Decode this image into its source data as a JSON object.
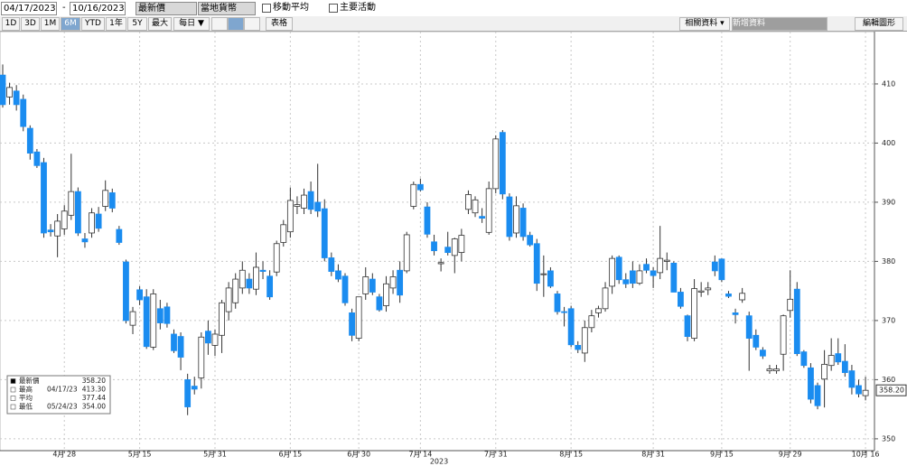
{
  "toolbar": {
    "start_date": "04/17/2023",
    "end_date": "10/16/2023",
    "field": "最新價",
    "currency": "當地貨幣",
    "moving_average": "移動平均",
    "events": "主要活動",
    "ranges": [
      "1D",
      "3D",
      "1M",
      "6M",
      "YTD",
      "1年",
      "5Y",
      "最大"
    ],
    "frequency": "每日 ▼",
    "table": "表格",
    "related": "相關資料 ▾",
    "add_data": "新增資料",
    "edit": "編輯圖形"
  },
  "chart_data": {
    "type": "candlestick",
    "year_label": "2023",
    "categories": [
      null,
      null,
      null,
      null,
      null,
      null,
      null,
      null,
      null,
      "4月 28",
      null,
      null,
      null,
      null,
      null,
      null,
      null,
      null,
      null,
      null,
      "5月 15",
      null,
      null,
      null,
      null,
      null,
      null,
      null,
      null,
      null,
      null,
      "5月 31",
      null,
      null,
      null,
      null,
      null,
      null,
      null,
      null,
      null,
      null,
      "6月 15",
      null,
      null,
      null,
      null,
      null,
      null,
      null,
      null,
      null,
      "6月 30",
      null,
      null,
      null,
      null,
      null,
      null,
      null,
      null,
      "7月 14",
      null,
      null,
      null,
      null,
      null,
      null,
      null,
      null,
      null,
      null,
      "7月 31",
      null,
      null,
      null,
      null,
      null,
      null,
      null,
      null,
      null,
      null,
      "8月 15",
      null,
      null,
      null,
      null,
      null,
      null,
      null,
      null,
      null,
      null,
      null,
      "8月 31",
      null,
      null,
      null,
      null,
      null,
      null,
      null,
      null,
      null,
      "9月 15",
      null,
      null,
      null,
      null,
      null,
      null,
      null,
      null,
      null,
      "9月 29",
      null,
      null,
      null,
      null,
      null,
      null,
      null,
      null,
      null,
      null,
      "10月 16"
    ],
    "open": [
      411.5,
      407.8,
      408.8,
      407.4,
      402.5,
      398.5,
      396.7,
      385.3,
      384.3,
      385.5,
      387.8,
      391.8,
      383.8,
      384.8,
      388.0,
      389.3,
      391.6,
      385.4,
      379.9,
      369.2,
      375.2,
      374.0,
      365.5,
      372.0,
      372.3,
      367.7,
      367.3,
      360.0,
      358.9,
      360.3,
      368.2,
      365.8,
      367.5,
      371.5,
      373.0,
      375.5,
      377.0,
      375.3,
      378.5,
      377.5,
      378.2,
      383.2,
      385.0,
      389.3,
      389.0,
      391.8,
      390.0,
      388.9,
      380.6,
      378.4,
      377.5,
      371.3,
      367.0,
      374.5,
      377.0,
      374.0,
      372.5,
      375.5,
      378.5,
      378.4,
      389.3,
      393.0,
      389.2,
      383.3,
      379.6,
      382.4,
      381.0,
      381.5,
      388.8,
      388.2,
      387.6,
      384.9,
      392.3,
      401.8,
      390.9,
      384.8,
      389.0,
      384.4,
      383.0,
      377.8,
      378.4,
      374.5,
      371.5,
      372.0,
      365.8,
      364.5,
      368.8,
      371.3,
      372.0,
      375.8,
      380.7,
      376.9,
      378.4,
      376.3,
      379.5,
      378.4,
      378.1,
      380.0,
      379.7,
      374.8,
      370.8,
      367.0,
      374.8,
      375.2,
      379.9,
      380.4,
      374.5,
      371.3,
      373.5,
      370.8,
      367.5,
      365.0,
      361.5,
      361.5,
      364.3,
      371.7,
      375.3,
      364.7,
      362.0,
      359.0,
      360.1,
      362.4,
      364.4,
      363.1,
      361.5,
      359.0,
      357.3
    ],
    "high": [
      413.3,
      410.2,
      409.8,
      408.2,
      403.0,
      399.0,
      397.5,
      386.3,
      388.0,
      389.5,
      398.2,
      392.5,
      384.8,
      389.0,
      389.2,
      393.7,
      392.3,
      386.0,
      380.3,
      372.3,
      375.8,
      375.3,
      375.3,
      373.5,
      373.0,
      368.5,
      368.0,
      361.0,
      360.5,
      368.0,
      370.0,
      368.5,
      373.5,
      376.5,
      378.0,
      380.0,
      378.0,
      381.5,
      380.0,
      378.5,
      383.5,
      387.0,
      392.5,
      391.0,
      392.3,
      393.5,
      396.5,
      390.5,
      381.5,
      379.5,
      378.0,
      372.0,
      374.0,
      379.0,
      378.0,
      374.5,
      377.5,
      378.5,
      380.0,
      385.0,
      393.5,
      394.0,
      390.0,
      384.5,
      380.5,
      385.0,
      384.0,
      385.5,
      392.0,
      391.0,
      389.0,
      393.5,
      401.3,
      402.2,
      391.5,
      391.0,
      389.8,
      385.0,
      383.8,
      381.0,
      379.0,
      375.0,
      372.3,
      372.5,
      366.5,
      370.0,
      371.8,
      372.5,
      376.5,
      381.0,
      381.0,
      378.0,
      380.0,
      379.5,
      380.5,
      379.0,
      386.0,
      381.5,
      380.0,
      375.5,
      371.0,
      377.0,
      376.5,
      376.5,
      381.0,
      380.5,
      375.0,
      372.0,
      375.5,
      371.5,
      368.5,
      365.5,
      362.5,
      362.5,
      371.0,
      378.5,
      376.5,
      365.0,
      362.8,
      359.5,
      365.0,
      367.0,
      367.0,
      366.0,
      362.5,
      360.0,
      360.5
    ],
    "low": [
      406.0,
      406.5,
      405.5,
      402.0,
      397.2,
      395.8,
      384.0,
      384.2,
      380.7,
      384.5,
      387.0,
      384.3,
      382.3,
      384.0,
      385.0,
      388.5,
      388.3,
      382.8,
      369.5,
      367.7,
      372.6,
      365.2,
      365.0,
      368.5,
      368.8,
      364.5,
      361.6,
      354.0,
      357.5,
      358.5,
      364.2,
      364.0,
      364.5,
      370.0,
      372.0,
      374.5,
      374.5,
      374.3,
      377.0,
      373.5,
      377.5,
      382.5,
      384.0,
      388.0,
      388.0,
      388.0,
      387.5,
      380.0,
      377.5,
      376.5,
      372.5,
      366.5,
      366.5,
      373.5,
      374.3,
      371.5,
      371.5,
      374.5,
      373.0,
      378.0,
      388.8,
      391.8,
      384.0,
      381.0,
      378.3,
      381.0,
      378.0,
      380.0,
      388.0,
      387.5,
      386.5,
      384.5,
      391.5,
      390.5,
      383.5,
      384.0,
      383.5,
      382.5,
      375.0,
      374.0,
      375.5,
      371.0,
      369.0,
      365.5,
      364.5,
      363.0,
      368.0,
      370.5,
      371.5,
      374.5,
      376.2,
      375.5,
      375.5,
      376.0,
      378.0,
      375.5,
      377.0,
      378.5,
      374.8,
      372.0,
      366.5,
      366.5,
      374.0,
      374.3,
      377.5,
      376.5,
      373.8,
      369.5,
      373.0,
      361.5,
      365.0,
      363.5,
      361.0,
      361.0,
      361.5,
      370.5,
      364.0,
      362.0,
      356.0,
      355.0,
      355.3,
      361.5,
      362.5,
      360.5,
      357.5,
      357.0,
      356.5
    ],
    "close": [
      406.5,
      409.4,
      406.5,
      402.8,
      398.3,
      396.2,
      384.8,
      385.0,
      386.8,
      388.5,
      391.8,
      384.8,
      383.3,
      388.2,
      385.6,
      392.0,
      389.0,
      383.2,
      370.0,
      371.5,
      373.5,
      365.6,
      374.5,
      369.6,
      369.5,
      364.9,
      363.8,
      355.4,
      358.4,
      367.2,
      366.2,
      367.7,
      373.0,
      375.5,
      377.0,
      378.5,
      375.5,
      379.0,
      378.3,
      374.0,
      383.0,
      386.2,
      390.3,
      389.6,
      391.2,
      388.8,
      388.5,
      380.6,
      378.3,
      377.0,
      373.0,
      367.5,
      374.0,
      377.4,
      374.8,
      371.8,
      376.2,
      377.4,
      374.3,
      384.5,
      393.0,
      392.1,
      384.6,
      381.8,
      379.8,
      381.5,
      383.8,
      384.4,
      391.3,
      390.4,
      387.3,
      392.3,
      400.7,
      391.4,
      384.2,
      389.4,
      384.2,
      382.8,
      376.3,
      377.9,
      375.8,
      371.5,
      371.4,
      365.9,
      365.1,
      368.8,
      370.8,
      372.0,
      375.5,
      380.5,
      376.9,
      376.2,
      376.3,
      378.4,
      378.5,
      377.6,
      380.5,
      380.2,
      374.8,
      372.4,
      367.3,
      375.4,
      375.0,
      375.5,
      378.4,
      376.9,
      374.1,
      371.0,
      374.6,
      367.0,
      365.5,
      364.0,
      361.8,
      361.8,
      370.8,
      373.6,
      364.4,
      362.4,
      356.7,
      355.6,
      362.6,
      364.1,
      363.0,
      361.2,
      358.7,
      357.6,
      358.2
    ],
    "up_color": "#ffffff",
    "down_color": "#1a8cf0",
    "edge_color": "#333333",
    "ylim": [
      348,
      419
    ],
    "yticks": [
      350,
      360,
      370,
      380,
      390,
      400,
      410
    ],
    "grid": true,
    "last_price": {
      "value": 358.2,
      "label": "358.20"
    },
    "legend": [
      {
        "label": "最新價",
        "value": "358.20"
      },
      {
        "label": "最高",
        "date": "04/17/23",
        "value": "413.30"
      },
      {
        "label": "平均",
        "value": "377.44"
      },
      {
        "label": "最低",
        "date": "05/24/23",
        "value": "354.00"
      }
    ]
  }
}
